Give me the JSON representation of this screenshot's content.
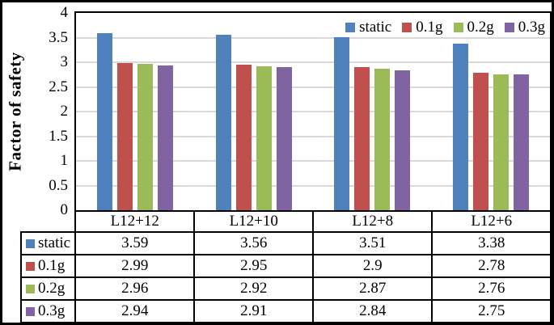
{
  "chart_data": {
    "type": "bar",
    "title": "",
    "ylabel": "Factor of safety",
    "xlabel": "",
    "ylim": [
      0,
      4
    ],
    "ytick_step": 0.5,
    "yticks": [
      "4",
      "3.5",
      "3",
      "2.5",
      "2",
      "1.5",
      "1",
      "0.5",
      "0"
    ],
    "grid": true,
    "grid_color": "#D9D9D9",
    "legend_position": "top-right-inside",
    "data_table_shown": true,
    "categories": [
      "L12+12",
      "L12+10",
      "L12+8",
      "L12+6"
    ],
    "series": [
      {
        "name": "static",
        "color": "#4F81BD",
        "values": [
          3.59,
          3.56,
          3.51,
          3.38
        ],
        "labels": [
          "3.59",
          "3.56",
          "3.51",
          "3.38"
        ]
      },
      {
        "name": "0.1g",
        "color": "#C0504D",
        "values": [
          2.99,
          2.95,
          2.9,
          2.78
        ],
        "labels": [
          "2.99",
          "2.95",
          "2.9",
          "2.78"
        ]
      },
      {
        "name": "0.2g",
        "color": "#9BBB59",
        "values": [
          2.96,
          2.92,
          2.87,
          2.76
        ],
        "labels": [
          "2.96",
          "2.92",
          "2.87",
          "2.76"
        ]
      },
      {
        "name": "0.3g",
        "color": "#8064A2",
        "values": [
          2.94,
          2.91,
          2.84,
          2.75
        ],
        "labels": [
          "2.94",
          "2.91",
          "2.84",
          "2.75"
        ]
      }
    ]
  }
}
